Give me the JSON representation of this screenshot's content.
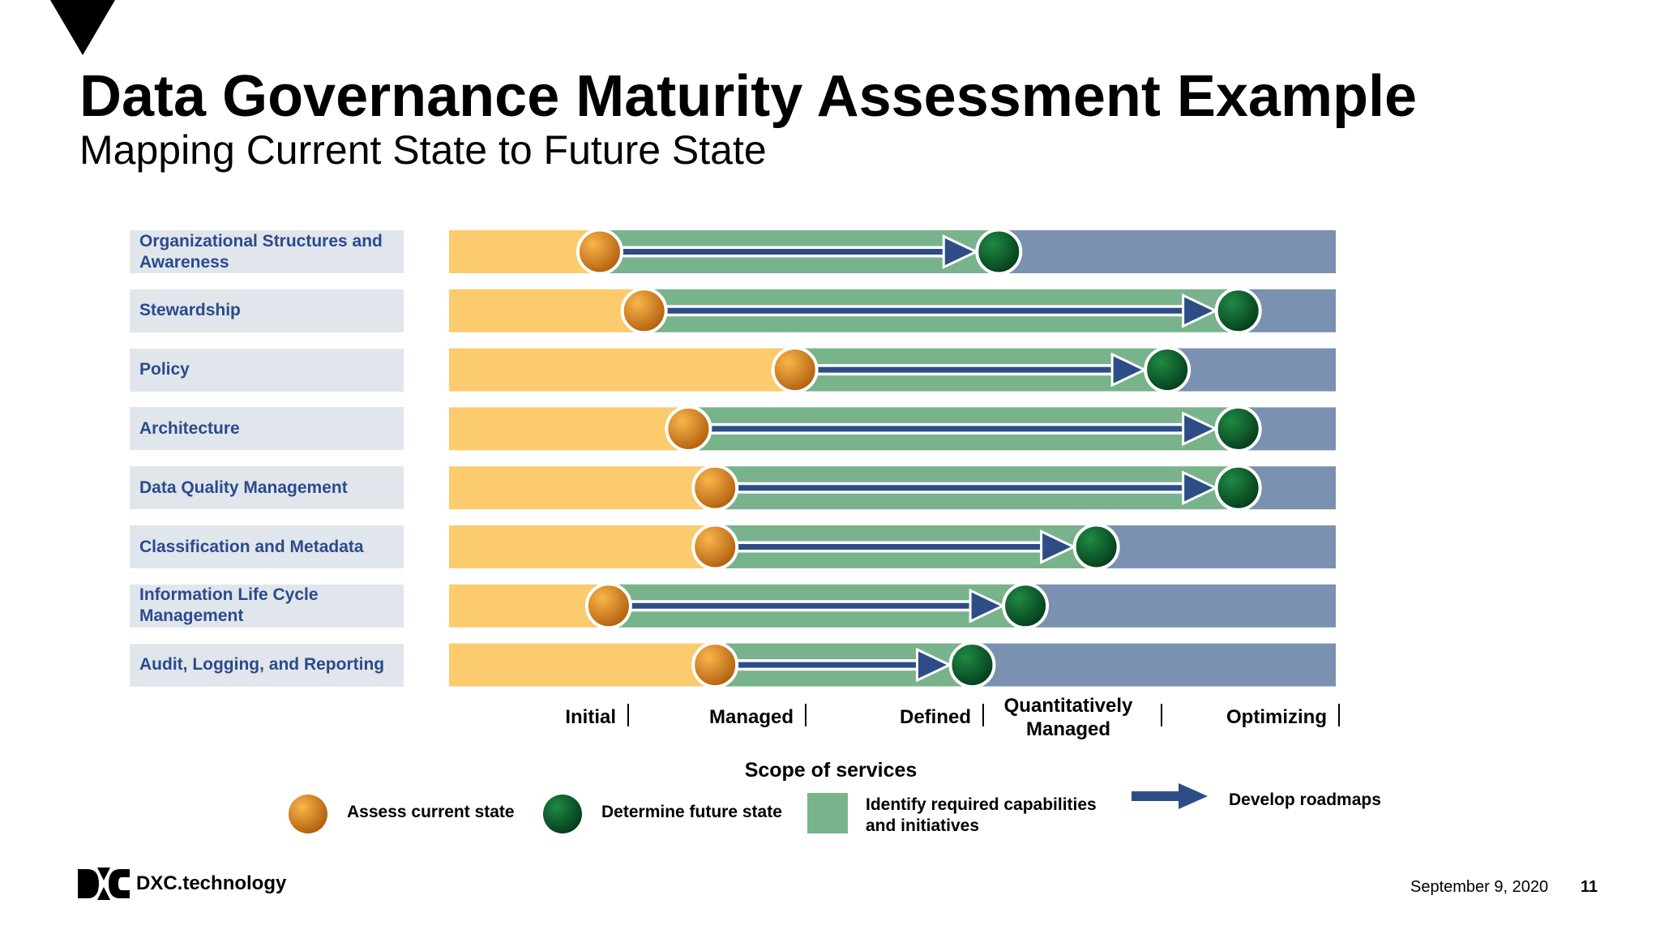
{
  "header": {
    "title": "Data Governance Maturity Assessment Example",
    "subtitle": "Mapping Current State to Future State"
  },
  "colors": {
    "initial_band": "#fccb6e",
    "capability_band": "#78b38c",
    "remaining_band": "#7a91b1",
    "arrow": "#2e4d86",
    "label_bg": "#e0e6ec",
    "label_text": "#2c4a8c",
    "current_dot": "#e08a1e",
    "future_dot": "#0e5a2c"
  },
  "chart_data": {
    "type": "table",
    "rows": [
      {
        "label": "Organizational Structures and Awareness",
        "current": 0.17,
        "future": 0.62
      },
      {
        "label": "Stewardship",
        "current": 0.22,
        "future": 0.89
      },
      {
        "label": "Policy",
        "current": 0.39,
        "future": 0.81
      },
      {
        "label": "Architecture",
        "current": 0.27,
        "future": 0.89
      },
      {
        "label": "Data Quality Management",
        "current": 0.3,
        "future": 0.89
      },
      {
        "label": "Classification and Metadata",
        "current": 0.3,
        "future": 0.73
      },
      {
        "label": "Information Life Cycle Management",
        "current": 0.18,
        "future": 0.65
      },
      {
        "label": "Audit, Logging, and Reporting",
        "current": 0.3,
        "future": 0.59
      }
    ],
    "levels": [
      "Initial",
      "Managed",
      "Defined",
      "Quantitatively Managed",
      "Optimizing"
    ]
  },
  "legend": {
    "scope_title": "Scope of services",
    "assess": "Assess current state",
    "determine": "Determine future state",
    "identify": "Identify required capabilities and initiatives",
    "develop": "Develop roadmaps"
  },
  "footer": {
    "brand": "DXC.technology",
    "date": "September 9, 2020",
    "page": "11"
  }
}
